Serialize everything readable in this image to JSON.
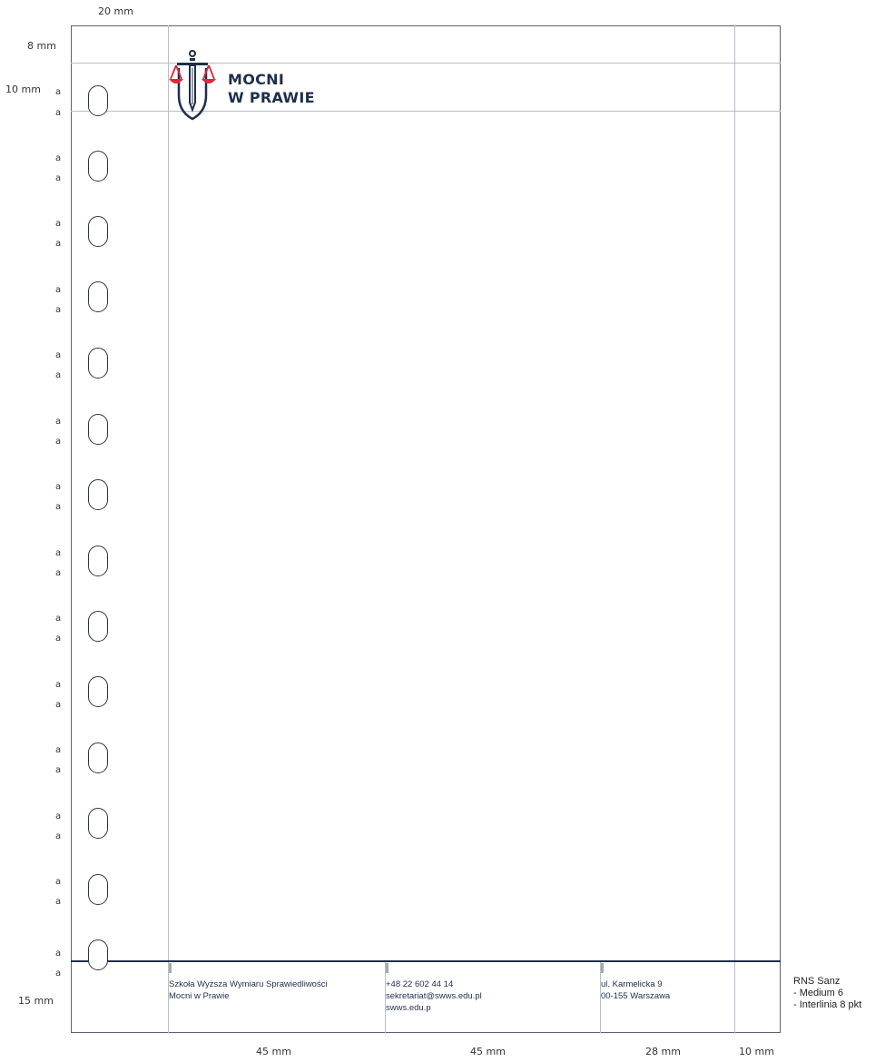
{
  "dimensions": {
    "left_margin": "20 mm",
    "top_offset": "8 mm",
    "top_margin": "10 mm",
    "bottom_margin": "15 mm",
    "col1": "45 mm",
    "col2": "45 mm",
    "col3": "28 mm",
    "right_margin": "10 mm"
  },
  "logo": {
    "line1": "MOCNI",
    "line2": "W PRAWIE",
    "brand_color": "#1f2f4a",
    "accent_color": "#e0253a",
    "icon": "sword-scales-shield-icon"
  },
  "footer": {
    "col1": [
      "Szkoła Wyższa Wymiaru Sprawiedliwości",
      "Mocni w Prawie"
    ],
    "col2": [
      "+48 22 602 44 14",
      "sekretariat@swws.edu.pl",
      "swws.edu.p"
    ],
    "col3": [
      "ul. Karmelicka 9",
      "00-155 Warszawa"
    ]
  },
  "font_spec": {
    "name": "RNS Sanz",
    "line1": "- Medium 6",
    "line2": "- Interlinia 8 pkt"
  },
  "binder_holes": {
    "count": 14,
    "mark": "a"
  }
}
